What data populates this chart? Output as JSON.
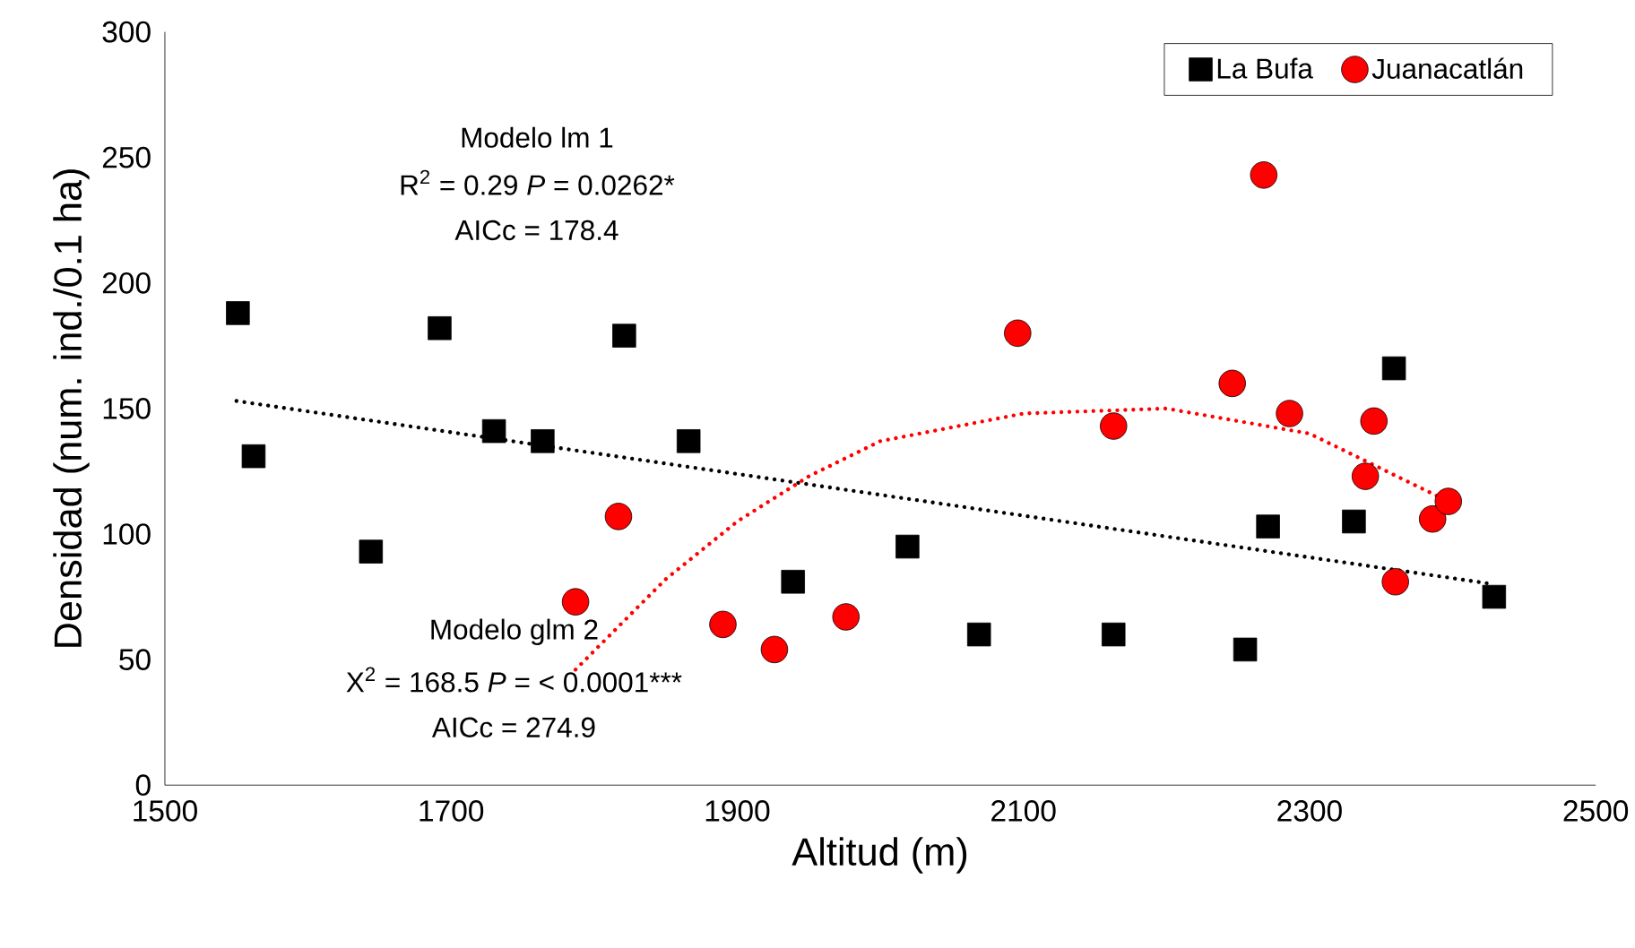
{
  "chart_data": {
    "type": "scatter",
    "xlabel": "Altitud (m)",
    "ylabel": "Densidad  (num. ind./0.1 ha)",
    "xlim": [
      1500,
      2500
    ],
    "ylim": [
      0,
      300
    ],
    "xticks": [
      1500,
      1700,
      1900,
      2100,
      2300,
      2500
    ],
    "yticks": [
      0,
      50,
      100,
      150,
      200,
      250,
      300
    ],
    "grid": false,
    "legend": "top right",
    "series": [
      {
        "name": "La Bufa",
        "marker": "square",
        "color": "#000000",
        "x": [
          1551,
          1562,
          1644,
          1692,
          1730,
          1764,
          1821,
          1866,
          1939,
          2019,
          2069,
          2163,
          2255,
          2271,
          2331,
          2359,
          2429
        ],
        "values": [
          188,
          131,
          93,
          182,
          141,
          137,
          179,
          137,
          81,
          95,
          60,
          60,
          54,
          103,
          105,
          166,
          75
        ]
      },
      {
        "name": "Juanacatlán",
        "marker": "circle",
        "color": "#ff0000",
        "x": [
          1787,
          1817,
          1890,
          1926,
          1976,
          2096,
          2163,
          2246,
          2268,
          2286,
          2345,
          2339,
          2386,
          2397,
          2360
        ],
        "values": [
          73,
          107,
          64,
          54,
          67,
          180,
          143,
          160,
          243,
          148,
          145,
          123,
          106,
          113,
          81
        ]
      },
      {
        "type": "line",
        "line_style": "dotted",
        "marker": "none",
        "color": "#000000",
        "x": [
          1550,
          2429
        ],
        "values": [
          153,
          80
        ]
      },
      {
        "type": "line",
        "line_style": "dotted",
        "marker": "none",
        "color": "#ff0000",
        "x": [
          1787,
          1850,
          1900,
          1950,
          2000,
          2100,
          2200,
          2300,
          2397
        ],
        "values": [
          46,
          82,
          105,
          123,
          137,
          148,
          150,
          140,
          113
        ]
      }
    ],
    "annotations": [
      "Modelo lm 1",
      "R$^{2}$ = 0.29   *P* = 0.0262*",
      "AICc = 178.4",
      "Modelo glm 2",
      "X$^{2}$ = 168.5   *P* = < 0.0001***",
      "AICc = 274.9"
    ]
  }
}
